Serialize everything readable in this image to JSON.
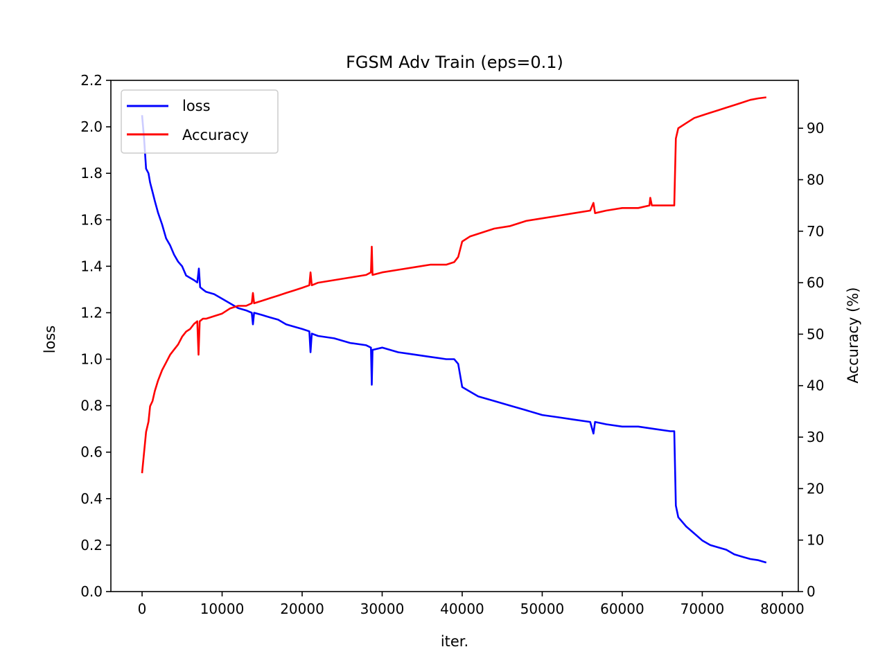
{
  "chart_data": {
    "type": "line",
    "title": "FGSM Adv Train (eps=0.1)",
    "xlabel": "iter.",
    "ylabel_left": "loss",
    "ylabel_right": "Accuracy (%)",
    "xlim": [
      -3900,
      82000
    ],
    "ylim_left": [
      0,
      2.2
    ],
    "ylim_right": [
      0,
      99.3
    ],
    "xticks": [
      0,
      10000,
      20000,
      30000,
      40000,
      50000,
      60000,
      70000,
      80000
    ],
    "xtick_labels": [
      "0",
      "10000",
      "20000",
      "30000",
      "40000",
      "50000",
      "60000",
      "70000",
      "80000"
    ],
    "yticks_left": [
      0.0,
      0.2,
      0.4,
      0.6,
      0.8,
      1.0,
      1.2,
      1.4,
      1.6,
      1.8,
      2.0,
      2.2
    ],
    "ytick_labels_left": [
      "0.0",
      "0.2",
      "0.4",
      "0.6",
      "0.8",
      "1.0",
      "1.2",
      "1.4",
      "1.6",
      "1.8",
      "2.0",
      "2.2"
    ],
    "yticks_right": [
      0,
      10,
      20,
      30,
      40,
      50,
      60,
      70,
      80,
      90
    ],
    "ytick_labels_right": [
      "0",
      "10",
      "20",
      "30",
      "40",
      "50",
      "60",
      "70",
      "80",
      "90"
    ],
    "grid": false,
    "legend_position": "upper-left",
    "series": [
      {
        "name": "loss",
        "axis": "left",
        "color": "#0000ff",
        "points": [
          [
            0,
            2.05
          ],
          [
            250,
            1.95
          ],
          [
            500,
            1.82
          ],
          [
            800,
            1.8
          ],
          [
            1000,
            1.76
          ],
          [
            1300,
            1.72
          ],
          [
            1600,
            1.68
          ],
          [
            2000,
            1.63
          ],
          [
            2500,
            1.58
          ],
          [
            3000,
            1.52
          ],
          [
            3500,
            1.49
          ],
          [
            4000,
            1.45
          ],
          [
            4500,
            1.42
          ],
          [
            5000,
            1.4
          ],
          [
            5500,
            1.36
          ],
          [
            6000,
            1.35
          ],
          [
            6500,
            1.34
          ],
          [
            6900,
            1.33
          ],
          [
            7100,
            1.39
          ],
          [
            7250,
            1.31
          ],
          [
            7600,
            1.3
          ],
          [
            8000,
            1.29
          ],
          [
            9000,
            1.28
          ],
          [
            10000,
            1.26
          ],
          [
            11000,
            1.24
          ],
          [
            12000,
            1.22
          ],
          [
            13000,
            1.21
          ],
          [
            13700,
            1.2
          ],
          [
            13850,
            1.15
          ],
          [
            14000,
            1.2
          ],
          [
            15000,
            1.19
          ],
          [
            16000,
            1.18
          ],
          [
            17000,
            1.17
          ],
          [
            18000,
            1.15
          ],
          [
            19000,
            1.14
          ],
          [
            20000,
            1.13
          ],
          [
            20900,
            1.12
          ],
          [
            21050,
            1.03
          ],
          [
            21200,
            1.11
          ],
          [
            22000,
            1.1
          ],
          [
            24000,
            1.09
          ],
          [
            26000,
            1.07
          ],
          [
            28000,
            1.06
          ],
          [
            28600,
            1.05
          ],
          [
            28700,
            0.89
          ],
          [
            28800,
            1.04
          ],
          [
            30000,
            1.05
          ],
          [
            32000,
            1.03
          ],
          [
            34000,
            1.02
          ],
          [
            36000,
            1.01
          ],
          [
            38000,
            1.0
          ],
          [
            39000,
            1.0
          ],
          [
            39500,
            0.98
          ],
          [
            40000,
            0.88
          ],
          [
            41000,
            0.86
          ],
          [
            42000,
            0.84
          ],
          [
            44000,
            0.82
          ],
          [
            46000,
            0.8
          ],
          [
            48000,
            0.78
          ],
          [
            50000,
            0.76
          ],
          [
            52000,
            0.75
          ],
          [
            54000,
            0.74
          ],
          [
            56000,
            0.73
          ],
          [
            56400,
            0.68
          ],
          [
            56600,
            0.73
          ],
          [
            58000,
            0.72
          ],
          [
            60000,
            0.71
          ],
          [
            62000,
            0.71
          ],
          [
            64000,
            0.7
          ],
          [
            66000,
            0.69
          ],
          [
            66500,
            0.69
          ],
          [
            66700,
            0.37
          ],
          [
            67000,
            0.32
          ],
          [
            68000,
            0.28
          ],
          [
            69000,
            0.25
          ],
          [
            70000,
            0.22
          ],
          [
            71000,
            0.2
          ],
          [
            72000,
            0.19
          ],
          [
            73000,
            0.18
          ],
          [
            74000,
            0.16
          ],
          [
            75000,
            0.15
          ],
          [
            76000,
            0.14
          ],
          [
            77000,
            0.135
          ],
          [
            78000,
            0.125
          ]
        ]
      },
      {
        "name": "Accuracy",
        "axis": "right",
        "color": "#ff0000",
        "points": [
          [
            0,
            23
          ],
          [
            250,
            27
          ],
          [
            500,
            31
          ],
          [
            800,
            33
          ],
          [
            1000,
            36
          ],
          [
            1300,
            37
          ],
          [
            1600,
            39
          ],
          [
            2000,
            41
          ],
          [
            2500,
            43
          ],
          [
            3000,
            44.5
          ],
          [
            3500,
            46
          ],
          [
            4000,
            47
          ],
          [
            4500,
            48
          ],
          [
            5000,
            49.5
          ],
          [
            5500,
            50.5
          ],
          [
            6000,
            51
          ],
          [
            6500,
            52
          ],
          [
            6900,
            52.5
          ],
          [
            7050,
            46
          ],
          [
            7200,
            52.5
          ],
          [
            7600,
            53
          ],
          [
            8000,
            53
          ],
          [
            9000,
            53.5
          ],
          [
            10000,
            54
          ],
          [
            11000,
            55
          ],
          [
            12000,
            55.5
          ],
          [
            13000,
            55.5
          ],
          [
            13700,
            56
          ],
          [
            13850,
            58
          ],
          [
            14000,
            56
          ],
          [
            15000,
            56.5
          ],
          [
            16000,
            57
          ],
          [
            17000,
            57.5
          ],
          [
            18000,
            58
          ],
          [
            19000,
            58.5
          ],
          [
            20000,
            59
          ],
          [
            20900,
            59.5
          ],
          [
            21050,
            62
          ],
          [
            21200,
            59.5
          ],
          [
            22000,
            60
          ],
          [
            24000,
            60.5
          ],
          [
            26000,
            61
          ],
          [
            28000,
            61.5
          ],
          [
            28600,
            62
          ],
          [
            28700,
            67
          ],
          [
            28800,
            61.5
          ],
          [
            30000,
            62
          ],
          [
            32000,
            62.5
          ],
          [
            34000,
            63
          ],
          [
            36000,
            63.5
          ],
          [
            38000,
            63.5
          ],
          [
            39000,
            64
          ],
          [
            39500,
            65
          ],
          [
            40000,
            68
          ],
          [
            41000,
            69
          ],
          [
            42000,
            69.5
          ],
          [
            44000,
            70.5
          ],
          [
            46000,
            71
          ],
          [
            48000,
            72
          ],
          [
            50000,
            72.5
          ],
          [
            52000,
            73
          ],
          [
            54000,
            73.5
          ],
          [
            56000,
            74
          ],
          [
            56400,
            75.5
          ],
          [
            56600,
            73.5
          ],
          [
            58000,
            74
          ],
          [
            60000,
            74.5
          ],
          [
            62000,
            74.5
          ],
          [
            63400,
            75
          ],
          [
            63500,
            76.5
          ],
          [
            63700,
            75
          ],
          [
            66000,
            75
          ],
          [
            66500,
            75
          ],
          [
            66700,
            88
          ],
          [
            67000,
            90
          ],
          [
            68000,
            91
          ],
          [
            69000,
            92
          ],
          [
            70000,
            92.5
          ],
          [
            71000,
            93
          ],
          [
            72000,
            93.5
          ],
          [
            73000,
            94
          ],
          [
            74000,
            94.5
          ],
          [
            75000,
            95
          ],
          [
            76000,
            95.5
          ],
          [
            77000,
            95.8
          ],
          [
            78000,
            96
          ]
        ]
      }
    ]
  }
}
